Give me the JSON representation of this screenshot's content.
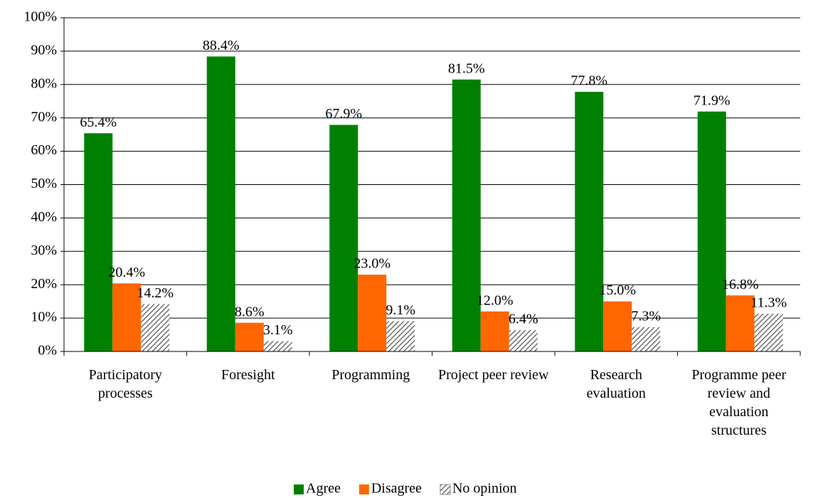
{
  "chart_data": {
    "type": "bar",
    "categories": [
      "Participatory processes",
      "Foresight",
      "Programming",
      "Project peer review",
      "Research evaluation",
      "Programme peer review and evaluation structures"
    ],
    "series": [
      {
        "name": "Agree",
        "color": "#008000",
        "values": [
          65.4,
          88.4,
          67.9,
          81.5,
          77.8,
          71.9
        ],
        "value_labels": [
          "65.4%",
          "88.4%",
          "67.9%",
          "81.5%",
          "77.8%",
          "71.9%"
        ]
      },
      {
        "name": "Disagree",
        "color": "#ff6600",
        "values": [
          20.4,
          8.6,
          23.0,
          12.0,
          15.0,
          16.8
        ],
        "value_labels": [
          "20.4%",
          "8.6%",
          "23.0%",
          "12.0%",
          "15.0%",
          "16.8%"
        ]
      },
      {
        "name": "No opinion",
        "color": "#808080",
        "pattern": "hatch",
        "values": [
          14.2,
          3.1,
          9.1,
          6.4,
          7.3,
          11.3
        ],
        "value_labels": [
          "14.2%",
          "3.1%",
          "9.1%",
          "6.4%",
          "7.3%",
          "11.3%"
        ]
      }
    ],
    "ylim": [
      0,
      100
    ],
    "yticks": [
      {
        "value": 0,
        "label": "0%"
      },
      {
        "value": 10,
        "label": "10%"
      },
      {
        "value": 20,
        "label": "20%"
      },
      {
        "value": 30,
        "label": "30%"
      },
      {
        "value": 40,
        "label": "40%"
      },
      {
        "value": 50,
        "label": "50%"
      },
      {
        "value": 60,
        "label": "60%"
      },
      {
        "value": 70,
        "label": "70%"
      },
      {
        "value": 80,
        "label": "80%"
      },
      {
        "value": 90,
        "label": "90%"
      },
      {
        "value": 100,
        "label": "100%"
      }
    ],
    "grid": true,
    "legend": "bottom"
  }
}
